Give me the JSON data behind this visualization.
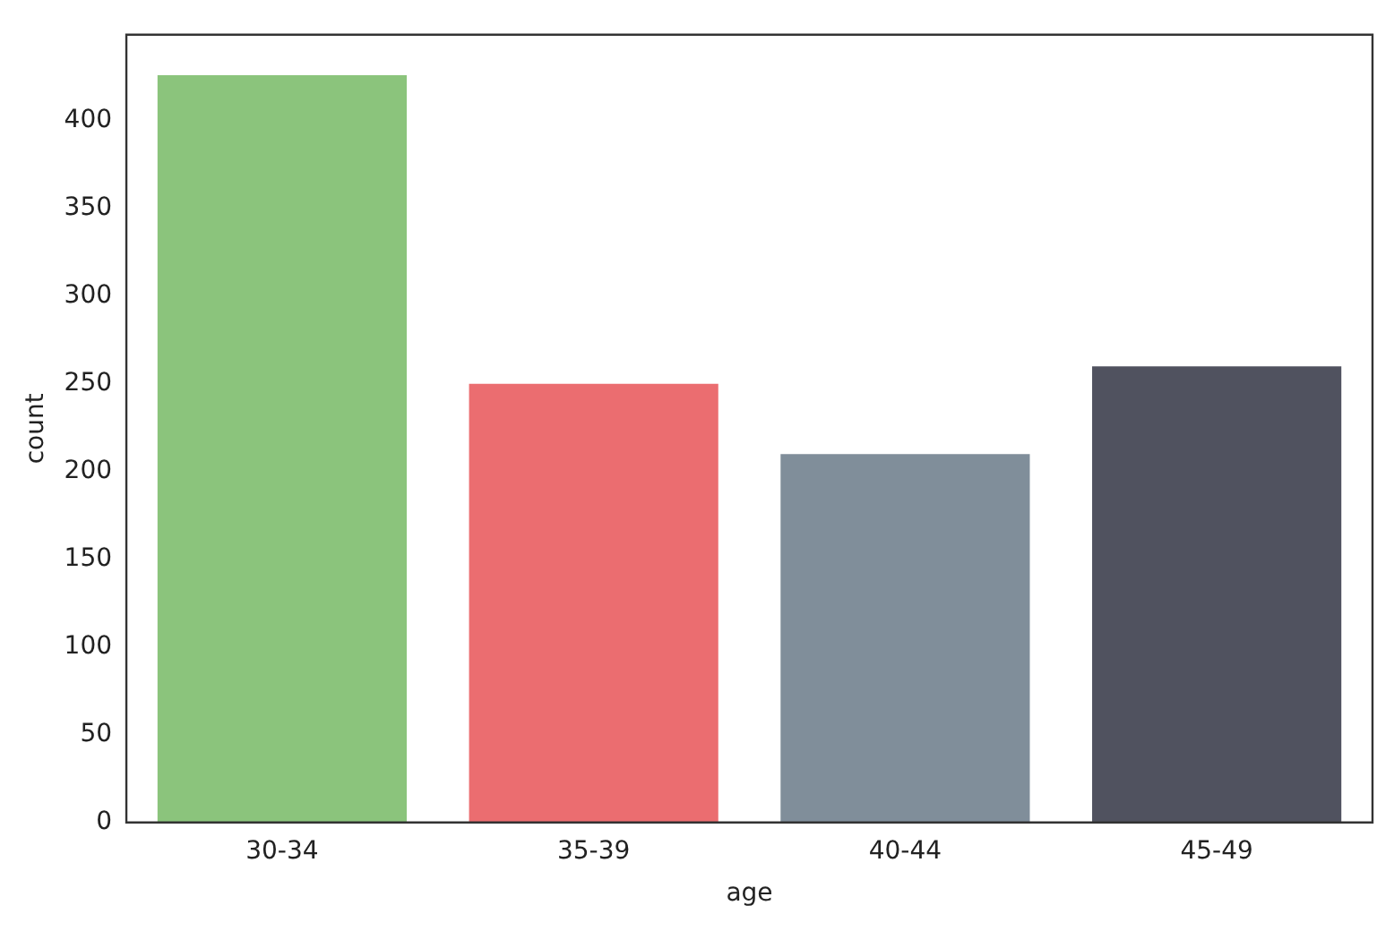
{
  "chart_data": {
    "type": "bar",
    "xlabel": "age",
    "ylabel": "count",
    "categories": [
      "30-34",
      "35-39",
      "40-44",
      "45-49"
    ],
    "values": [
      426,
      250,
      210,
      260
    ],
    "colors": [
      "#8bc47c",
      "#eb6d70",
      "#808e9a",
      "#50525f"
    ],
    "ylim": [
      0,
      449
    ],
    "yticks": [
      0,
      50,
      100,
      150,
      200,
      250,
      300,
      350,
      400
    ],
    "grid": false
  }
}
